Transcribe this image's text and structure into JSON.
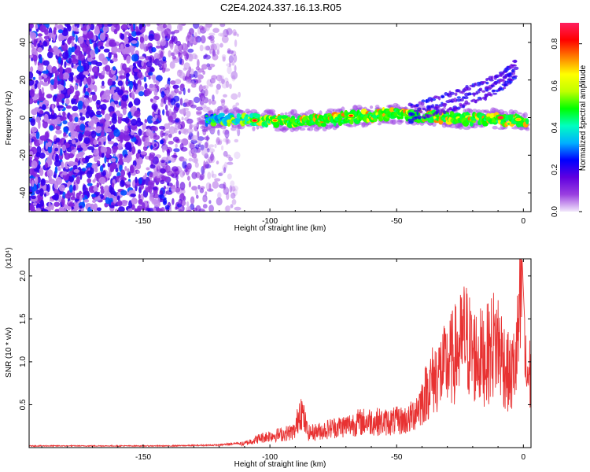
{
  "figure_title": "C2E4.2024.337.16.13.R05",
  "chart_data": [
    {
      "type": "heatmap",
      "title": "C2E4.2024.337.16.13.R05",
      "xlabel": "Height of straight line (km)",
      "ylabel": "Frequency (Hz)",
      "xlim": [
        -195,
        3
      ],
      "ylim": [
        -50,
        50
      ],
      "xticks": [
        -150,
        -100,
        -50,
        0
      ],
      "xtick_labels": [
        "-150",
        "-100",
        "-50",
        "0"
      ],
      "yticks": [
        -40,
        -20,
        0,
        20,
        40
      ],
      "ytick_labels": [
        "-40",
        "-20",
        "0",
        "20",
        "40"
      ],
      "colorbar": {
        "label": "Normalized spectral amplitude",
        "range": [
          0,
          0.9
        ],
        "ticks": [
          0.0,
          0.2,
          0.4,
          0.6,
          0.8
        ],
        "tick_labels": [
          "0.0",
          "0.2",
          "0.4",
          "0.6",
          "0.8"
        ],
        "colormap": [
          "#f2e8fb",
          "#9a40e0",
          "#6000e0",
          "#0000ff",
          "#00b0ff",
          "#00ffc0",
          "#00ff00",
          "#c0ff00",
          "#ffff00",
          "#ff8000",
          "#ff0000",
          "#ff2060"
        ]
      },
      "signal_band": [
        {
          "x": -125,
          "y": -1.0
        },
        {
          "x": -110,
          "y": -1.0
        },
        {
          "x": -100,
          "y": -1.5
        },
        {
          "x": -90,
          "y": -2.0
        },
        {
          "x": -80,
          "y": -1.5
        },
        {
          "x": -70,
          "y": 0.0
        },
        {
          "x": -60,
          "y": 1.0
        },
        {
          "x": -50,
          "y": 2.0
        },
        {
          "x": -40,
          "y": 1.0
        },
        {
          "x": -30,
          "y": 0.0
        },
        {
          "x": -20,
          "y": -1.0
        },
        {
          "x": -10,
          "y": -1.0
        },
        {
          "x": 0,
          "y": -2.0
        }
      ],
      "noise_region": {
        "x_from": -195,
        "x_to": -120
      },
      "upper_branch": [
        {
          "x": -45,
          "y": 2
        },
        {
          "x": -35,
          "y": 6
        },
        {
          "x": -25,
          "y": 10
        },
        {
          "x": -15,
          "y": 15
        },
        {
          "x": -8,
          "y": 20
        },
        {
          "x": -3,
          "y": 26
        }
      ],
      "peaks": [
        {
          "x": -106,
          "y": -1.5,
          "z": 0.85
        },
        {
          "x": -98,
          "y": -1.5,
          "z": 0.75
        },
        {
          "x": -68,
          "y": 1.0,
          "z": 0.8
        },
        {
          "x": -9,
          "y": 0.0,
          "z": 0.9
        },
        {
          "x": -2,
          "y": -1.0,
          "z": 0.7
        }
      ]
    },
    {
      "type": "line",
      "xlabel": "Height of straight line (km)",
      "ylabel": "SNR (10 * v/v)",
      "y_multiplier_label": "(x10⁴)",
      "xlim": [
        -195,
        3
      ],
      "ylim": [
        0,
        2.2
      ],
      "xticks": [
        -150,
        -100,
        -50,
        0
      ],
      "xtick_labels": [
        "-150",
        "-100",
        "-50",
        "0"
      ],
      "yticks": [
        0.5,
        1.0,
        1.5,
        2.0
      ],
      "ytick_labels": [
        "0.5",
        "1.0",
        "1.5",
        "2.0"
      ],
      "series": [
        {
          "color": "#e83232",
          "points": [
            [
              -195,
              0.02
            ],
            [
              -180,
              0.02
            ],
            [
              -160,
              0.02
            ],
            [
              -140,
              0.02
            ],
            [
              -120,
              0.03
            ],
            [
              -110,
              0.06
            ],
            [
              -105,
              0.13
            ],
            [
              -100,
              0.18
            ],
            [
              -95,
              0.2
            ],
            [
              -90,
              0.25
            ],
            [
              -88,
              0.62
            ],
            [
              -85,
              0.22
            ],
            [
              -80,
              0.25
            ],
            [
              -75,
              0.3
            ],
            [
              -70,
              0.33
            ],
            [
              -65,
              0.38
            ],
            [
              -60,
              0.4
            ],
            [
              -55,
              0.38
            ],
            [
              -50,
              0.4
            ],
            [
              -45,
              0.42
            ],
            [
              -40,
              0.7
            ],
            [
              -37,
              0.95
            ],
            [
              -34,
              1.1
            ],
            [
              -31,
              1.2
            ],
            [
              -28,
              1.35
            ],
            [
              -25,
              1.5
            ],
            [
              -23,
              1.68
            ],
            [
              -20,
              1.4
            ],
            [
              -15,
              1.35
            ],
            [
              -12,
              1.55
            ],
            [
              -10,
              1.58
            ],
            [
              -7,
              1.2
            ],
            [
              -5,
              1.05
            ],
            [
              -3,
              1.3
            ],
            [
              -1.5,
              1.9
            ],
            [
              -0.5,
              2.2
            ],
            [
              1,
              1.1
            ]
          ]
        }
      ]
    }
  ]
}
